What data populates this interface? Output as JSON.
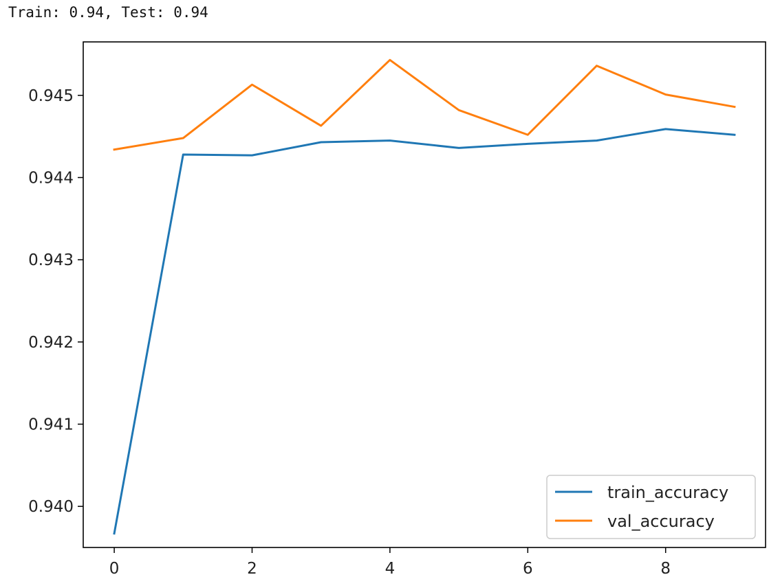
{
  "output": {
    "text": "Train: 0.94, Test: 0.94"
  },
  "chart_data": {
    "type": "line",
    "title": "",
    "xlabel": "",
    "ylabel": "",
    "x": [
      0,
      1,
      2,
      3,
      4,
      5,
      6,
      7,
      8,
      9
    ],
    "xlim": [
      -0.45,
      9.45
    ],
    "ylim": [
      0.9395,
      0.94565
    ],
    "xticks": [
      0,
      2,
      4,
      6,
      8
    ],
    "yticks": [
      0.94,
      0.941,
      0.942,
      0.943,
      0.944,
      0.945
    ],
    "ytick_labels": [
      "0.940",
      "0.941",
      "0.942",
      "0.943",
      "0.944",
      "0.945"
    ],
    "grid": false,
    "legend_position": "lower-right",
    "series": [
      {
        "name": "train_accuracy",
        "color": "#1f77b4",
        "values": [
          0.93967,
          0.94428,
          0.94427,
          0.94443,
          0.94445,
          0.94436,
          0.94441,
          0.94445,
          0.94459,
          0.94452
        ]
      },
      {
        "name": "val_accuracy",
        "color": "#ff7f0e",
        "values": [
          0.94434,
          0.94448,
          0.94513,
          0.94463,
          0.94543,
          0.94482,
          0.94452,
          0.94536,
          0.94501,
          0.94486
        ]
      }
    ]
  }
}
